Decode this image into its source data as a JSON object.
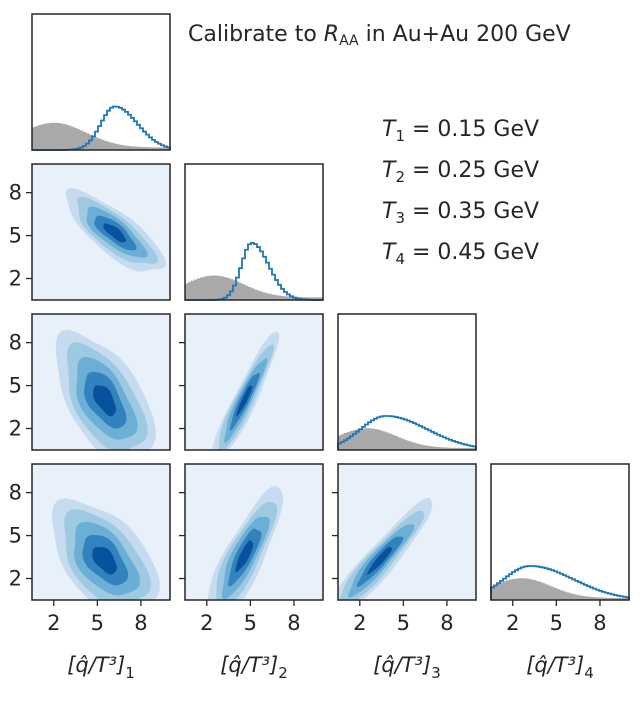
{
  "chart_data": {
    "type": "corner-plot",
    "title_prefix": "Calibrate to ",
    "title_var": "R",
    "title_sub": "AA",
    "title_suffix": " in Au+Au 200 GeV",
    "parameters": [
      {
        "id": "1",
        "label_main": "[q̂/T³]",
        "label_sub": "1"
      },
      {
        "id": "2",
        "label_main": "[q̂/T³]",
        "label_sub": "2"
      },
      {
        "id": "3",
        "label_main": "[q̂/T³]",
        "label_sub": "3"
      },
      {
        "id": "4",
        "label_main": "[q̂/T³]",
        "label_sub": "4"
      }
    ],
    "temperatures": [
      {
        "var": "T",
        "sub": "1",
        "rest": " = 0.15 GeV"
      },
      {
        "var": "T",
        "sub": "2",
        "rest": " = 0.25 GeV"
      },
      {
        "var": "T",
        "sub": "3",
        "rest": " = 0.35 GeV"
      },
      {
        "var": "T",
        "sub": "4",
        "rest": " = 0.45 GeV"
      }
    ],
    "axis_range": [
      0.5,
      10
    ],
    "ticks": [
      2,
      5,
      8
    ],
    "tick_labels": [
      "2",
      "5",
      "8"
    ],
    "colors": {
      "posterior": "#1f77b4",
      "prior": "#a9a9a9",
      "panel_bg": "#e8f0fa",
      "frame": "#262626",
      "contours": [
        "#c6dbef",
        "#9ecae1",
        "#6baed6",
        "#3182bd",
        "#08519c"
      ]
    },
    "marginals": [
      {
        "param": "1",
        "prior_peak": 2.0,
        "prior_width": 2.2,
        "prior_floor": 0.05,
        "post_mean": 6.2,
        "post_sd": 1.2,
        "ymax_rel": 1.0
      },
      {
        "param": "2",
        "prior_peak": 2.5,
        "prior_width": 2.0,
        "prior_floor": 0.06,
        "post_mean": 5.1,
        "post_sd": 0.9,
        "ymax_rel": 1.0
      },
      {
        "param": "3",
        "prior_peak": 2.5,
        "prior_width": 2.0,
        "prior_floor": 0.05,
        "post_mean": 3.8,
        "post_sd": 2.2,
        "ymax_rel": 1.0
      },
      {
        "param": "4",
        "prior_peak": 2.6,
        "prior_width": 2.0,
        "prior_floor": 0.05,
        "post_mean": 3.2,
        "post_sd": 2.3,
        "ymax_rel": 1.0
      }
    ],
    "joints": [
      {
        "x": "1",
        "y": "2",
        "mean_x": 6.2,
        "mean_y": 5.2,
        "sd_x": 1.3,
        "sd_y": 1.1,
        "rho": -0.78
      },
      {
        "x": "1",
        "y": "3",
        "mean_x": 5.5,
        "mean_y": 4.0,
        "sd_x": 1.3,
        "sd_y": 1.8,
        "rho": -0.55
      },
      {
        "x": "2",
        "y": "3",
        "mean_x": 4.6,
        "mean_y": 4.0,
        "sd_x": 0.9,
        "sd_y": 1.8,
        "rho": 0.93
      },
      {
        "x": "1",
        "y": "4",
        "mean_x": 5.5,
        "mean_y": 3.3,
        "sd_x": 1.4,
        "sd_y": 1.6,
        "rho": -0.5
      },
      {
        "x": "2",
        "y": "4",
        "mean_x": 4.6,
        "mean_y": 3.6,
        "sd_x": 1.0,
        "sd_y": 1.8,
        "rho": 0.82
      },
      {
        "x": "3",
        "y": "4",
        "mean_x": 3.4,
        "mean_y": 3.3,
        "sd_x": 1.4,
        "sd_y": 1.6,
        "rho": 0.93
      }
    ]
  }
}
